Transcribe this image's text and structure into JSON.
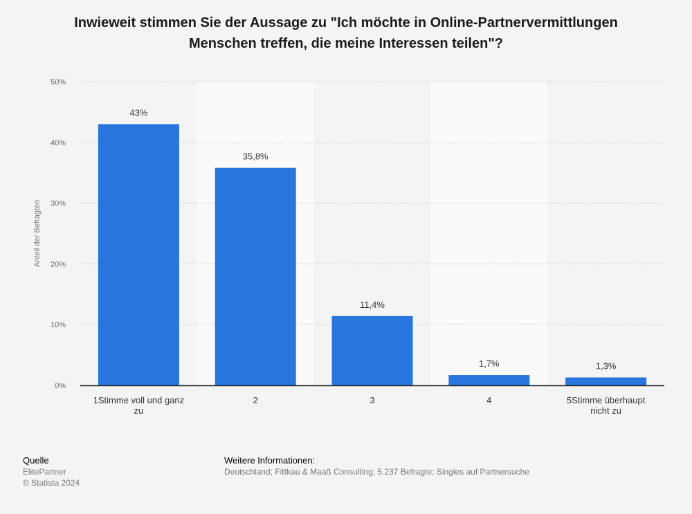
{
  "chart_data": {
    "type": "bar",
    "title_lines": [
      "Inwieweit stimmen Sie der Aussage zu \"Ich möchte in Online-Partnervermittlungen",
      "Menschen treffen, die meine Interessen teilen\"?"
    ],
    "categories": [
      [
        "1Stimme voll und ganz",
        "zu"
      ],
      [
        "2"
      ],
      [
        "3"
      ],
      [
        "4"
      ],
      [
        "5Stimme überhaupt",
        "nicht zu"
      ]
    ],
    "values": [
      43,
      35.8,
      11.4,
      1.7,
      1.3
    ],
    "value_labels": [
      "43%",
      "35,8%",
      "11,4%",
      "1,7%",
      "1,3%"
    ],
    "ylabel": "Anteil der Befragten",
    "ylim": [
      0,
      50
    ],
    "yticks": [
      {
        "value": 0,
        "label": "0%"
      },
      {
        "value": 10,
        "label": "10%"
      },
      {
        "value": 20,
        "label": "20%"
      },
      {
        "value": 30,
        "label": "30%"
      },
      {
        "value": 40,
        "label": "40%"
      },
      {
        "value": 50,
        "label": "50%"
      }
    ],
    "grid": true,
    "bar_color": "#2876dd"
  },
  "footer": {
    "source_heading": "Quelle",
    "source_lines": [
      "ElitePartner",
      "© Statista 2024"
    ],
    "info_heading": "Weitere Informationen:",
    "info_text": "Deutschland; Fittkau & Maaß Consulting; 5.237 Befragte; Singles auf Partnersuche"
  }
}
